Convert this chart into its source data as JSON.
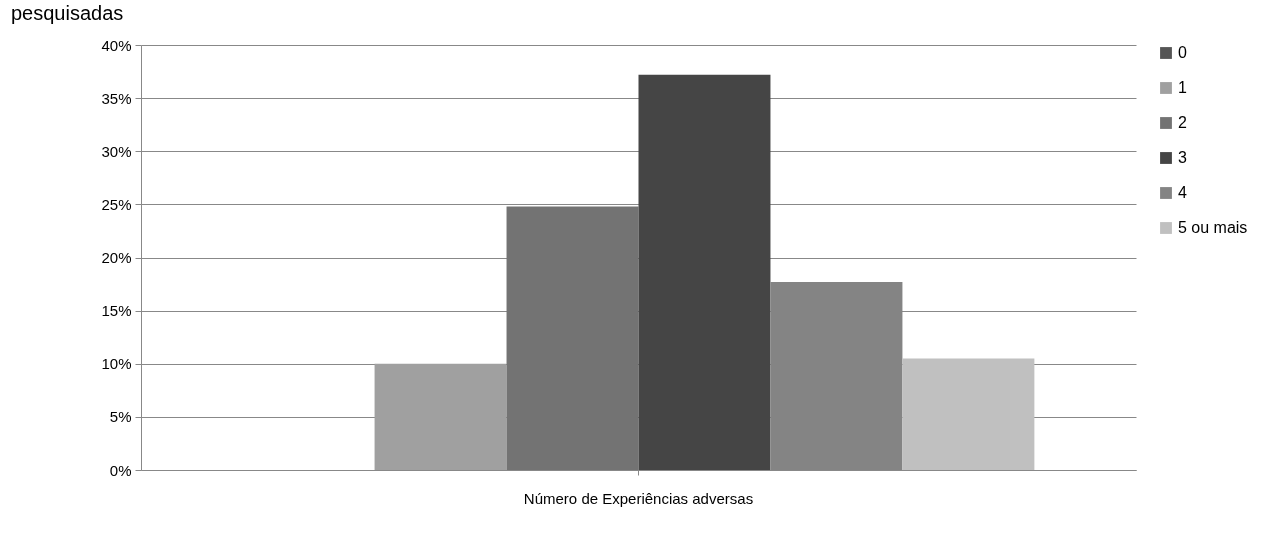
{
  "chart_data": {
    "type": "bar",
    "title": "pesquisadas",
    "categories": [
      "Número de Experiências adversas"
    ],
    "series": [
      {
        "name": "0",
        "color": "#555555",
        "values": [
          0
        ]
      },
      {
        "name": "1",
        "color": "#a0a0a0",
        "values": [
          10
        ]
      },
      {
        "name": "2",
        "color": "#737373",
        "values": [
          24.8
        ]
      },
      {
        "name": "3",
        "color": "#454545",
        "values": [
          37.2
        ]
      },
      {
        "name": "4",
        "color": "#848484",
        "values": [
          17.7
        ]
      },
      {
        "name": "5 ou mais",
        "color": "#c0c0c0",
        "values": [
          10.5
        ]
      }
    ],
    "ylim": [
      0,
      40
    ],
    "yticks": [
      {
        "value": 0,
        "label": "0%"
      },
      {
        "value": 5,
        "label": "5%"
      },
      {
        "value": 10,
        "label": "10%"
      },
      {
        "value": 15,
        "label": "15%"
      },
      {
        "value": 20,
        "label": "20%"
      },
      {
        "value": 25,
        "label": "25%"
      },
      {
        "value": 30,
        "label": "30%"
      },
      {
        "value": 35,
        "label": "35%"
      },
      {
        "value": 40,
        "label": "40%"
      }
    ],
    "grid": "y",
    "legend": "right"
  }
}
